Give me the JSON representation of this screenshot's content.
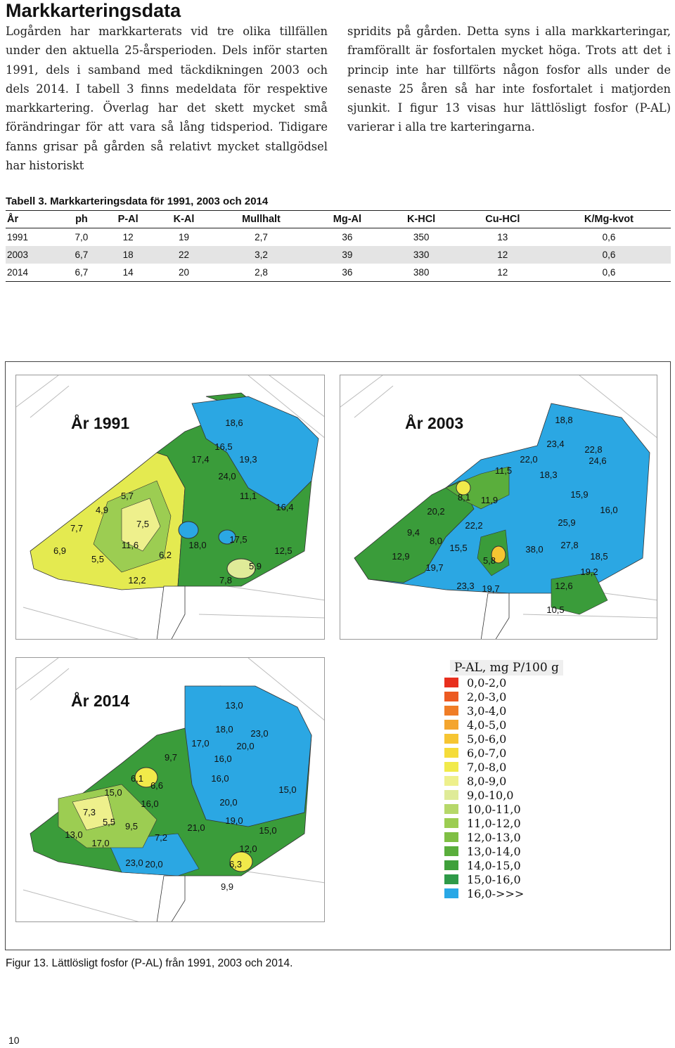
{
  "heading": "Markkarteringsdata",
  "body_left": "Logården har markkarterats vid tre olika tillfällen under den aktuella 25-årsperioden. Dels inför starten 1991, dels i samband med täckdikningen 2003 och dels 2014. I tabell 3 finns medeldata för respektive markkartering. Överlag har det skett mycket små förändringar för att vara så lång tidsperiod. Tidigare fanns grisar på gården så relativt mycket stallgödsel har historiskt",
  "body_right": "spridits på gården. Detta syns i alla markkarteringar, framförallt är fosfortalen mycket höga. Trots att det i princip inte har tillförts någon fosfor alls under de senaste 25 åren så har inte fosfortalet i matjorden sjunkit. I figur 13 visas hur lättlösligt fosfor (P-AL) varierar i alla tre karteringarna.",
  "table": {
    "caption": "Tabell 3. Markkarteringsdata för 1991, 2003 och 2014",
    "headers": [
      "År",
      "ph",
      "P-Al",
      "K-Al",
      "Mullhalt",
      "Mg-Al",
      "K-HCl",
      "Cu-HCl",
      "K/Mg-kvot"
    ],
    "rows": [
      [
        "1991",
        "7,0",
        "12",
        "19",
        "2,7",
        "36",
        "350",
        "13",
        "0,6"
      ],
      [
        "2003",
        "6,7",
        "18",
        "22",
        "3,2",
        "39",
        "330",
        "12",
        "0,6"
      ],
      [
        "2014",
        "6,7",
        "14",
        "20",
        "2,8",
        "36",
        "380",
        "12",
        "0,6"
      ]
    ]
  },
  "maps": [
    {
      "title": "År 1991",
      "labels": [
        "18,6",
        "16,5",
        "17,4",
        "19,3",
        "24,0",
        "5,7",
        "4,9",
        "11,1",
        "16,4",
        "7,7",
        "7,5",
        "6,9",
        "11,6",
        "5,5",
        "6,2",
        "18,0",
        "17,5",
        "12,5",
        "5,9",
        "12,2",
        "7,8"
      ]
    },
    {
      "title": "År 2003",
      "labels": [
        "18,8",
        "23,4",
        "22,8",
        "22,0",
        "24,6",
        "11,5",
        "18,3",
        "15,9",
        "8,1",
        "11,9",
        "20,2",
        "16,0",
        "22,2",
        "25,9",
        "9,4",
        "8,0",
        "15,5",
        "38,0",
        "27,8",
        "12,9",
        "5,8",
        "18,5",
        "19,7",
        "19,2",
        "23,3",
        "19,7",
        "12,6",
        "10,5"
      ]
    },
    {
      "title": "År 2014",
      "labels": [
        "13,0",
        "18,0",
        "23,0",
        "17,0",
        "20,0",
        "9,7",
        "16,0",
        "6,1",
        "6,6",
        "16,0",
        "15,0",
        "15,0",
        "16,0",
        "20,0",
        "7,3",
        "5,5",
        "9,5",
        "19,0",
        "21,0",
        "15,0",
        "13,0",
        "17,0",
        "7,2",
        "12,0",
        "23,0",
        "20,0",
        "6,3",
        "9,9"
      ]
    }
  ],
  "legend": {
    "title": "P-AL, mg P/100 g",
    "items": [
      {
        "label": "0,0-2,0",
        "color": "#e8301e"
      },
      {
        "label": "2,0-3,0",
        "color": "#ec5a22"
      },
      {
        "label": "3,0-4,0",
        "color": "#f07d26"
      },
      {
        "label": "4,0-5,0",
        "color": "#f4a52e"
      },
      {
        "label": "5,0-6,0",
        "color": "#f6c532"
      },
      {
        "label": "6,0-7,0",
        "color": "#f5dc3a"
      },
      {
        "label": "7,0-8,0",
        "color": "#f1ea4a"
      },
      {
        "label": "8,0-9,0",
        "color": "#eef08c"
      },
      {
        "label": "9,0-10,0",
        "color": "#dfeb98"
      },
      {
        "label": "10,0-11,0",
        "color": "#b6d86a"
      },
      {
        "label": "11,0-12,0",
        "color": "#9ccd52"
      },
      {
        "label": "12,0-13,0",
        "color": "#7fbf44"
      },
      {
        "label": "13,0-14,0",
        "color": "#5aae3c"
      },
      {
        "label": "14,0-15,0",
        "color": "#3ea03a"
      },
      {
        "label": "15,0-16,0",
        "color": "#2e9a48"
      },
      {
        "label": "16,0->>>",
        "color": "#29a8e6"
      }
    ]
  },
  "figure_caption": "Figur 13. Lättlösligt fosfor (P-AL) från 1991, 2003 och 2014.",
  "page_number": "10"
}
